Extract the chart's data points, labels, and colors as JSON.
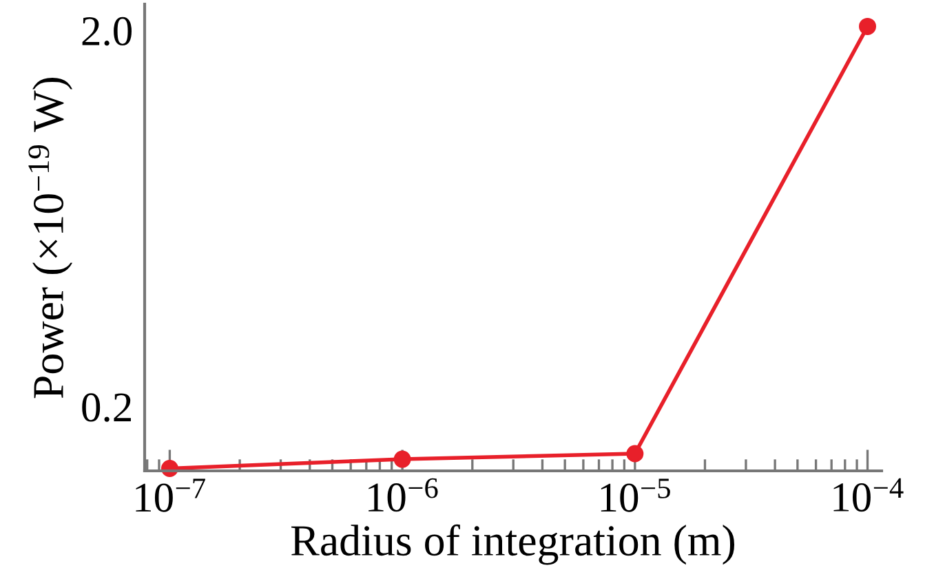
{
  "chart_data": {
    "type": "line",
    "xlabel": "Radius of integration (m)",
    "ylabel": "Power (×10$^{−19}$ W)",
    "x": [
      1e-07,
      1e-06,
      1e-05,
      0.0001
    ],
    "series": [
      {
        "color": "#e8202a",
        "values": [
          0.137,
          0.145,
          0.15,
          2.05
        ]
      }
    ],
    "log": "xy",
    "marker": "circle",
    "line_style": "solid",
    "grid": false,
    "xlim": [
      7.8e-08,
      0.000115
    ],
    "xticks": [
      {
        "value": 1e-07,
        "label": "10$^{−7}$"
      },
      {
        "value": 1e-06,
        "label": "10$^{−6}$"
      },
      {
        "value": 1e-05,
        "label": "10$^{−5}$"
      },
      {
        "value": 0.0001,
        "label": "10$^{−4}$"
      }
    ],
    "ylim": [
      0.135,
      2.35
    ],
    "yticks": [
      {
        "value": 0.2,
        "label": "0.2"
      },
      {
        "value": 2.0,
        "label": "2.0"
      }
    ]
  }
}
